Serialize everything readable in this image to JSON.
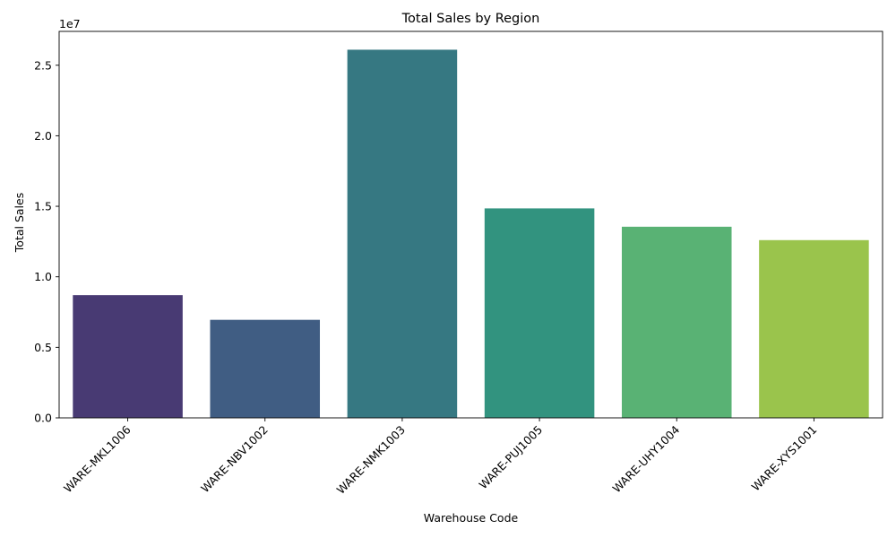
{
  "chart_data": {
    "type": "bar",
    "title": "Total Sales by Region",
    "xlabel": "Warehouse Code",
    "ylabel": "Total Sales",
    "y_offset_label": "1e7",
    "categories": [
      "WARE-MKL1006",
      "WARE-NBV1002",
      "WARE-NMK1003",
      "WARE-PUJ1005",
      "WARE-UHY1004",
      "WARE-XYS1001"
    ],
    "values": [
      8700000,
      6950000,
      26100000,
      14850000,
      13550000,
      12600000
    ],
    "colors": [
      "#483a73",
      "#405d83",
      "#367882",
      "#32937f",
      "#59b274",
      "#9ac44c"
    ],
    "ylim": [
      0,
      27400000
    ],
    "yticks": [
      {
        "value": 0,
        "label": "0.0"
      },
      {
        "value": 5000000,
        "label": "0.5"
      },
      {
        "value": 10000000,
        "label": "1.0"
      },
      {
        "value": 15000000,
        "label": "1.5"
      },
      {
        "value": 20000000,
        "label": "2.0"
      },
      {
        "value": 25000000,
        "label": "2.5"
      }
    ],
    "grid": false,
    "legend": "none"
  }
}
